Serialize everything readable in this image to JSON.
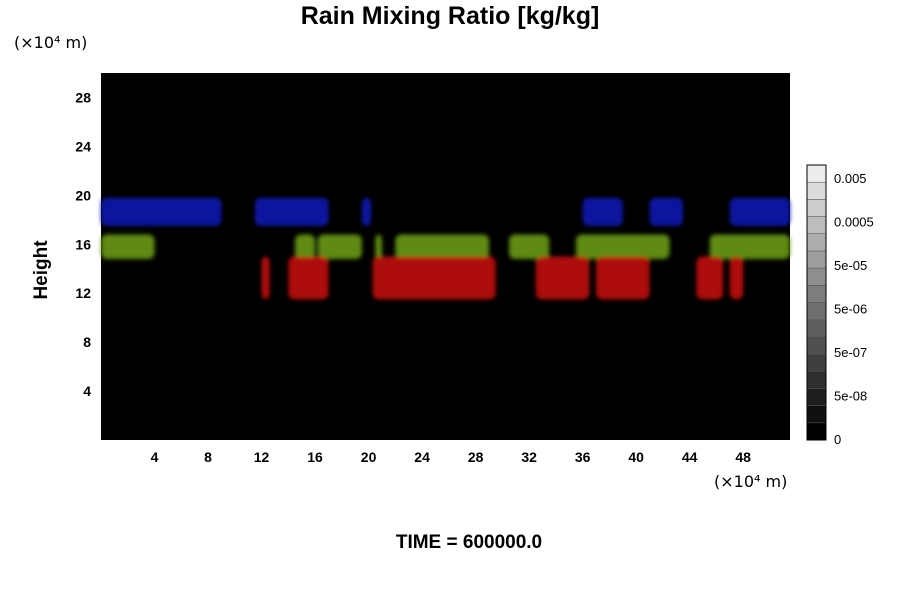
{
  "chart_data": {
    "type": "heatmap",
    "title": "Rain Mixing Ratio [kg/kg]",
    "ylabel": "Height",
    "y_unit": "(×10⁴ m)",
    "x_unit": "(×10⁴ m)",
    "xlim": [
      0,
      51.5
    ],
    "ylim": [
      0,
      30
    ],
    "x_ticks": [
      4,
      8,
      12,
      16,
      20,
      24,
      28,
      32,
      36,
      40,
      44,
      48
    ],
    "y_ticks": [
      4,
      8,
      12,
      16,
      20,
      24,
      28
    ],
    "colorbar": {
      "labels": [
        "0.005",
        "0.0005",
        "5e-05",
        "5e-06",
        "5e-07",
        "5e-08",
        "0"
      ],
      "levels": 16,
      "color_low": "#000000",
      "color_high": "#ececec"
    },
    "background_color": "#000000",
    "regions": [
      {
        "name": "blue",
        "color": "#1118b0",
        "y_range": [
          17.5,
          19.8
        ],
        "x_spans": [
          [
            0,
            9
          ],
          [
            11.5,
            17
          ],
          [
            19.5,
            20.2
          ],
          [
            36,
            39
          ],
          [
            41,
            43.5
          ],
          [
            47,
            51.5
          ]
        ]
      },
      {
        "name": "green",
        "color": "#6a9a1a",
        "y_range": [
          14.8,
          16.8
        ],
        "x_spans": [
          [
            0,
            4
          ],
          [
            14.5,
            16
          ],
          [
            16.2,
            19.5
          ],
          [
            20.5,
            21
          ],
          [
            22,
            29
          ],
          [
            30.5,
            33.5
          ],
          [
            35.5,
            42.5
          ],
          [
            45.5,
            51.5
          ]
        ]
      },
      {
        "name": "red",
        "color": "#c01010",
        "y_range": [
          11.5,
          15
        ],
        "x_spans": [
          [
            12,
            12.6
          ],
          [
            14,
            17
          ],
          [
            20.3,
            29.5
          ],
          [
            32.5,
            36.5
          ],
          [
            37,
            41
          ],
          [
            44.5,
            46.5
          ],
          [
            47,
            48
          ]
        ]
      }
    ]
  },
  "footer": {
    "time_label": "TIME = 600000.0"
  }
}
